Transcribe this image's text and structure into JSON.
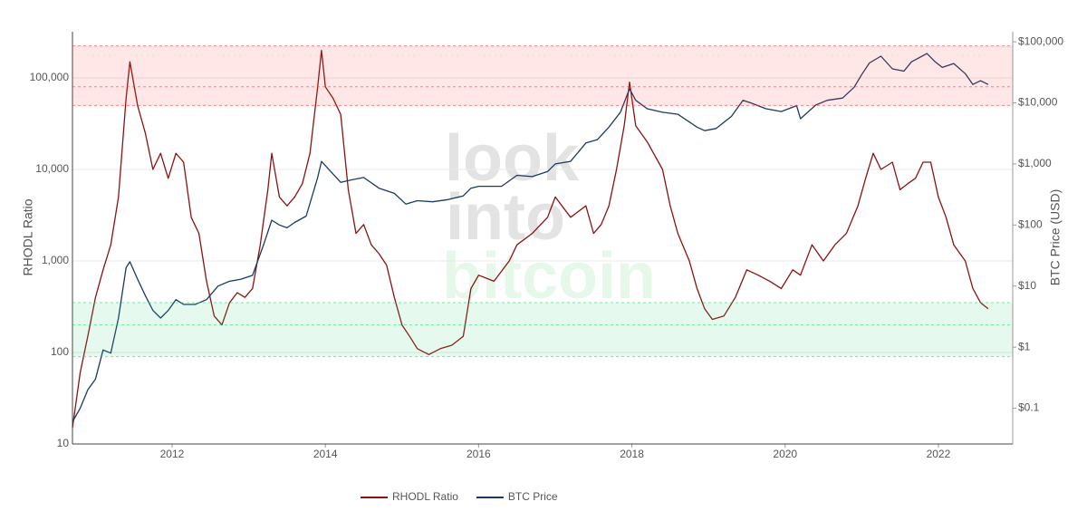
{
  "chart_data": {
    "type": "line",
    "watermark": [
      "look",
      "into",
      "bitcoin"
    ],
    "ylabel": "RHODL Ratio",
    "y2label": "BTC Price (USD)",
    "xlim": [
      2010.7,
      2022.97
    ],
    "xticks": [
      2012,
      2014,
      2016,
      2018,
      2020,
      2022
    ],
    "ylim": [
      10,
      320000
    ],
    "log_y": true,
    "yticks": [
      10,
      100,
      {
        "value": 1000,
        "label": "1,000"
      },
      {
        "value": 10000,
        "label": "10,000"
      },
      {
        "value": 100000,
        "label": "100,000"
      }
    ],
    "y2lim": [
      0.026,
      146000
    ],
    "log_y2": true,
    "y2ticks": [
      {
        "value": 0.1,
        "label": "$0.1"
      },
      {
        "value": 1,
        "label": "$1"
      },
      {
        "value": 10,
        "label": "$10"
      },
      {
        "value": 100,
        "label": "$100"
      },
      {
        "value": 1000,
        "label": "$1,000"
      },
      {
        "value": 10000,
        "label": "$10,000"
      },
      {
        "value": 100000,
        "label": "$100,000"
      }
    ],
    "grid": true,
    "legend": "bottom",
    "bands": [
      {
        "range": [
          50000,
          224000
        ],
        "mid": 80000,
        "color": "#ff3b3b"
      },
      {
        "range": [
          90,
          350
        ],
        "mid": 200,
        "color": "#2ecc71"
      }
    ],
    "series": [
      {
        "name": "RHODL Ratio",
        "color": "#8b1212",
        "axis": "y",
        "x": [
          2010.7,
          2010.8,
          2010.9,
          2011.0,
          2011.1,
          2011.2,
          2011.3,
          2011.4,
          2011.45,
          2011.55,
          2011.65,
          2011.75,
          2011.85,
          2011.95,
          2012.05,
          2012.15,
          2012.25,
          2012.35,
          2012.45,
          2012.55,
          2012.65,
          2012.75,
          2012.85,
          2012.95,
          2013.05,
          2013.15,
          2013.25,
          2013.3,
          2013.4,
          2013.5,
          2013.6,
          2013.7,
          2013.8,
          2013.9,
          2013.95,
          2014.0,
          2014.1,
          2014.2,
          2014.3,
          2014.4,
          2014.5,
          2014.6,
          2014.7,
          2014.8,
          2014.9,
          2015.0,
          2015.1,
          2015.2,
          2015.35,
          2015.5,
          2015.65,
          2015.8,
          2015.9,
          2016.0,
          2016.2,
          2016.4,
          2016.5,
          2016.7,
          2016.9,
          2017.0,
          2017.2,
          2017.4,
          2017.5,
          2017.6,
          2017.7,
          2017.8,
          2017.9,
          2017.97,
          2018.05,
          2018.2,
          2018.4,
          2018.5,
          2018.6,
          2018.75,
          2018.85,
          2018.95,
          2019.05,
          2019.2,
          2019.35,
          2019.5,
          2019.65,
          2019.8,
          2019.95,
          2020.1,
          2020.2,
          2020.35,
          2020.5,
          2020.65,
          2020.8,
          2020.95,
          2021.05,
          2021.15,
          2021.25,
          2021.4,
          2021.5,
          2021.6,
          2021.7,
          2021.8,
          2021.9,
          2022.0,
          2022.1,
          2022.2,
          2022.35,
          2022.45,
          2022.55,
          2022.65
        ],
        "values": [
          15,
          60,
          150,
          400,
          800,
          1500,
          5000,
          60000,
          150000,
          50000,
          25000,
          10000,
          15000,
          8000,
          15000,
          12000,
          3000,
          2000,
          600,
          250,
          200,
          350,
          450,
          400,
          500,
          1500,
          6000,
          15000,
          5000,
          4000,
          5000,
          7000,
          15000,
          80000,
          200000,
          80000,
          60000,
          40000,
          6000,
          2000,
          2500,
          1500,
          1200,
          900,
          400,
          200,
          150,
          110,
          95,
          110,
          120,
          150,
          500,
          700,
          600,
          1000,
          1500,
          2000,
          3000,
          5000,
          3000,
          4000,
          2000,
          2500,
          4000,
          10000,
          30000,
          90000,
          30000,
          20000,
          10000,
          4000,
          2000,
          1000,
          500,
          300,
          230,
          250,
          400,
          800,
          700,
          600,
          500,
          800,
          700,
          1500,
          1000,
          1500,
          2000,
          4000,
          8000,
          15000,
          10000,
          12000,
          6000,
          7000,
          8000,
          12000,
          12000,
          5000,
          3000,
          1500,
          1000,
          500,
          350,
          300
        ]
      },
      {
        "name": "BTC Price",
        "color": "#1c3a60",
        "axis": "y2",
        "x": [
          2010.7,
          2010.8,
          2010.9,
          2011.0,
          2011.1,
          2011.2,
          2011.3,
          2011.4,
          2011.45,
          2011.55,
          2011.65,
          2011.75,
          2011.85,
          2011.95,
          2012.05,
          2012.15,
          2012.3,
          2012.45,
          2012.6,
          2012.75,
          2012.9,
          2013.05,
          2013.2,
          2013.3,
          2013.4,
          2013.5,
          2013.6,
          2013.75,
          2013.9,
          2013.95,
          2014.05,
          2014.2,
          2014.35,
          2014.5,
          2014.7,
          2014.9,
          2015.05,
          2015.2,
          2015.4,
          2015.6,
          2015.8,
          2015.9,
          2016.0,
          2016.3,
          2016.5,
          2016.7,
          2016.9,
          2017.0,
          2017.2,
          2017.4,
          2017.55,
          2017.7,
          2017.85,
          2017.97,
          2018.05,
          2018.2,
          2018.4,
          2018.6,
          2018.85,
          2018.95,
          2019.1,
          2019.3,
          2019.45,
          2019.55,
          2019.75,
          2019.95,
          2020.15,
          2020.2,
          2020.4,
          2020.55,
          2020.75,
          2020.9,
          2021.0,
          2021.1,
          2021.25,
          2021.4,
          2021.55,
          2021.65,
          2021.85,
          2021.95,
          2022.05,
          2022.2,
          2022.35,
          2022.45,
          2022.55,
          2022.65
        ],
        "values": [
          0.06,
          0.1,
          0.2,
          0.3,
          0.9,
          0.8,
          3,
          20,
          25,
          13,
          7,
          4,
          3,
          4,
          6,
          5,
          5,
          6,
          10,
          12,
          13,
          15,
          50,
          120,
          100,
          90,
          110,
          140,
          600,
          1100,
          800,
          500,
          550,
          600,
          400,
          330,
          220,
          250,
          240,
          260,
          300,
          400,
          430,
          430,
          650,
          620,
          750,
          1000,
          1100,
          2200,
          2500,
          4000,
          7000,
          17000,
          11000,
          8000,
          7000,
          6500,
          4000,
          3500,
          3800,
          6000,
          11000,
          10000,
          8000,
          7200,
          9000,
          5500,
          9200,
          11000,
          12000,
          18000,
          29000,
          45000,
          58000,
          36000,
          33000,
          47000,
          64000,
          48000,
          38000,
          44000,
          30000,
          20000,
          23000,
          20000
        ]
      }
    ]
  }
}
